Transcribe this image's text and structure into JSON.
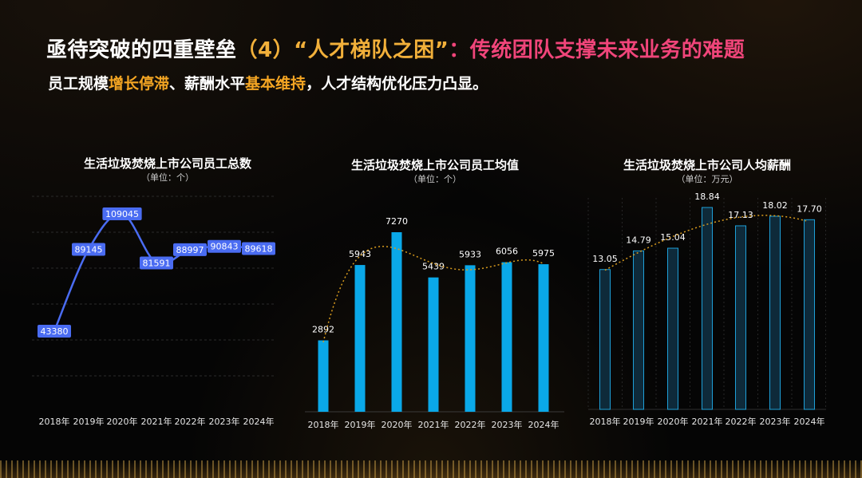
{
  "header": {
    "title_part1": "亟待突破的四重壁垒",
    "title_part2": "（4）“人才梯队之困”",
    "title_part3": "：传统团队支撑未来业务的难题",
    "subtitle_p1": "员工规模",
    "subtitle_hl1": "增长停滞",
    "subtitle_p2": "、薪酬水平",
    "subtitle_hl2": "基本维持",
    "subtitle_p3": "，人才结构优化压力凸显。"
  },
  "colors": {
    "title_white": "#ffffff",
    "title_gold": "#f2b03a",
    "title_pink": "#f0457a",
    "highlight_orange": "#f5a623",
    "line_blue": "#4a6cf2",
    "bar_cyan": "#0aa8e8",
    "bar_dark": "#0e2a3a",
    "bar_dark_stroke": "#1ea0d8",
    "trend_gold": "#d89b1e"
  },
  "chart_data": [
    {
      "type": "line",
      "title": "生活垃圾焚烧上市公司员工总数",
      "unit": "（单位：个）",
      "categories": [
        "2018年",
        "2019年",
        "2020年",
        "2021年",
        "2022年",
        "2023年",
        "2024年"
      ],
      "values": [
        43380,
        89145,
        109045,
        81591,
        88997,
        90843,
        89618
      ],
      "value_labels": [
        "43380",
        "89145",
        "109045",
        "81591",
        "88997",
        "90843",
        "89618"
      ],
      "grid": true
    },
    {
      "type": "bar",
      "title": "生活垃圾焚烧上市公司员工均值",
      "unit": "（单位：个）",
      "categories": [
        "2018年",
        "2019年",
        "2020年",
        "2021年",
        "2022年",
        "2023年",
        "2024年"
      ],
      "values": [
        2892,
        5943,
        7270,
        5439,
        5933,
        6056,
        5975
      ],
      "value_labels": [
        "2892",
        "5943",
        "7270",
        "5439",
        "5933",
        "6056",
        "5975"
      ],
      "trendline": "polynomial",
      "grid": false
    },
    {
      "type": "bar",
      "title": "生活垃圾焚烧上市公司人均薪酬",
      "unit": "（单位：万元）",
      "categories": [
        "2018年",
        "2019年",
        "2020年",
        "2021年",
        "2022年",
        "2023年",
        "2024年"
      ],
      "values": [
        13.05,
        14.79,
        15.04,
        18.84,
        17.13,
        18.02,
        17.7
      ],
      "value_labels": [
        "13.05",
        "14.79",
        "15.04",
        "18.84",
        "17.13",
        "18.02",
        "17.70"
      ],
      "trendline": "polynomial",
      "grid": true
    }
  ]
}
